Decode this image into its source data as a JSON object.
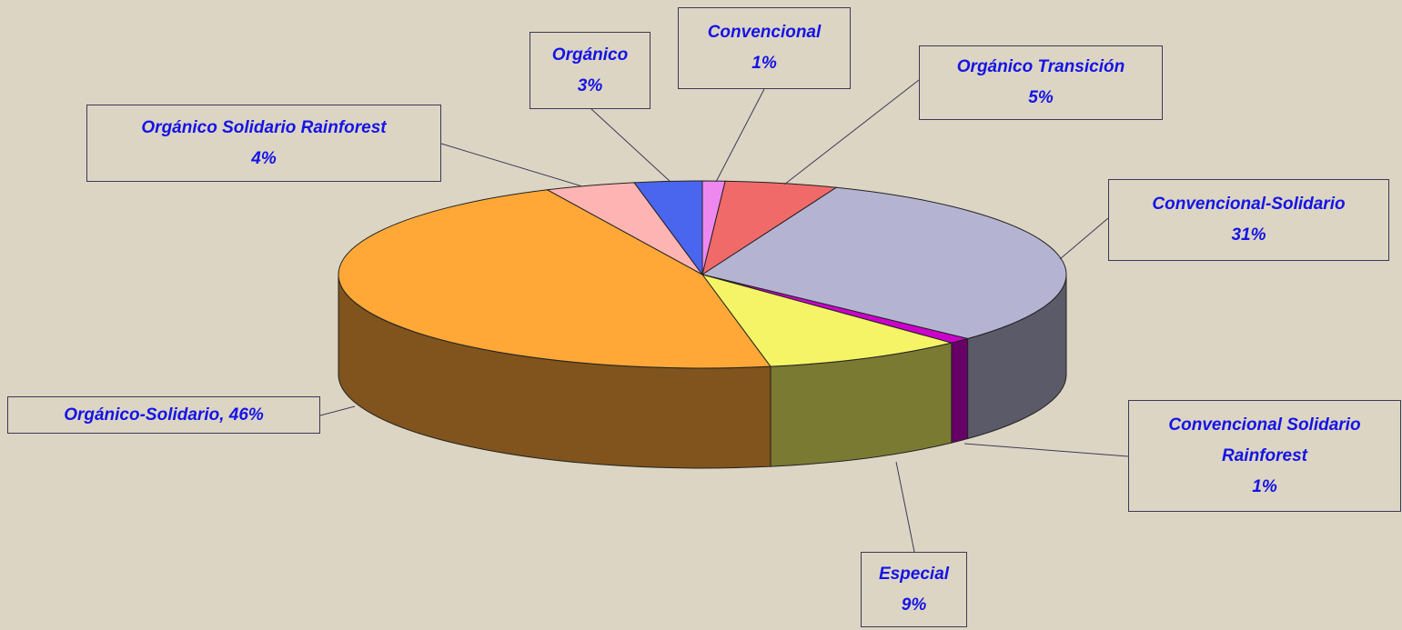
{
  "chart_data": {
    "type": "pie3d",
    "categories": [
      "Convencional",
      "Orgánico Transición",
      "Convencional-Solidario",
      "Convencional Solidario Rainforest",
      "Especial",
      "Orgánico-Solidario",
      "Orgánico Solidario Rainforest",
      "Orgánico"
    ],
    "values": [
      1,
      5,
      31,
      1,
      9,
      46,
      4,
      3
    ],
    "value_labels": [
      "1%",
      "5%",
      "31%",
      "1%",
      "9%",
      "46%",
      "4%",
      "3%"
    ],
    "label_separator": ", ",
    "colors": [
      "#ee88ee",
      "#f06a6a",
      "#b4b4d2",
      "#cc00cc",
      "#f4f466",
      "#ffa838",
      "#ffb4b4",
      "#4a66ee"
    ]
  }
}
